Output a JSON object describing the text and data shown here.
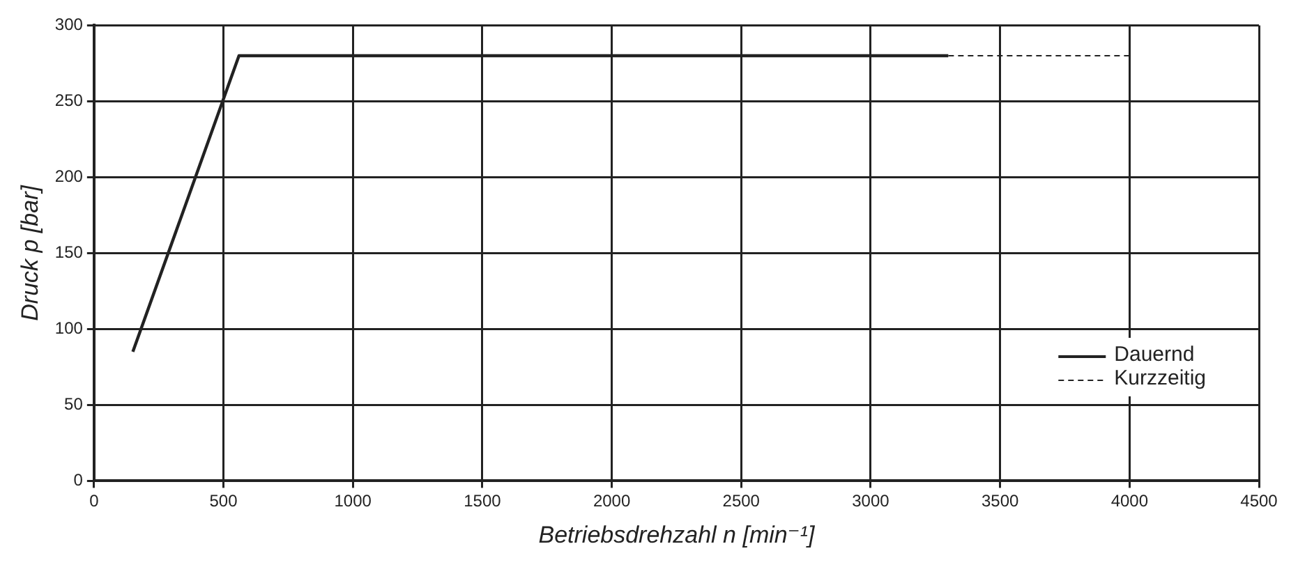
{
  "chart_data": {
    "type": "line",
    "xlabel": "Betriebsdrehzahl n [min⁻¹]",
    "ylabel": "Druck p [bar]",
    "xlim": [
      0,
      4500
    ],
    "xticks": [
      0,
      500,
      1000,
      1500,
      2000,
      2500,
      3000,
      3500,
      4000,
      4500
    ],
    "ylim": [
      0,
      300
    ],
    "yticks": [
      0,
      50,
      100,
      150,
      200,
      250,
      300
    ],
    "grid": true,
    "legend": "bottom right",
    "marker": "none",
    "series": [
      {
        "name": "Dauernd",
        "color": "#222222",
        "line_style": "solid",
        "x": [
          150,
          560,
          3300
        ],
        "values": [
          85,
          280,
          280
        ]
      },
      {
        "name": "Kurzzeitig",
        "color": "#222222",
        "line_style": "dashed",
        "x": [
          3300,
          4000
        ],
        "values": [
          280,
          280
        ]
      }
    ]
  }
}
